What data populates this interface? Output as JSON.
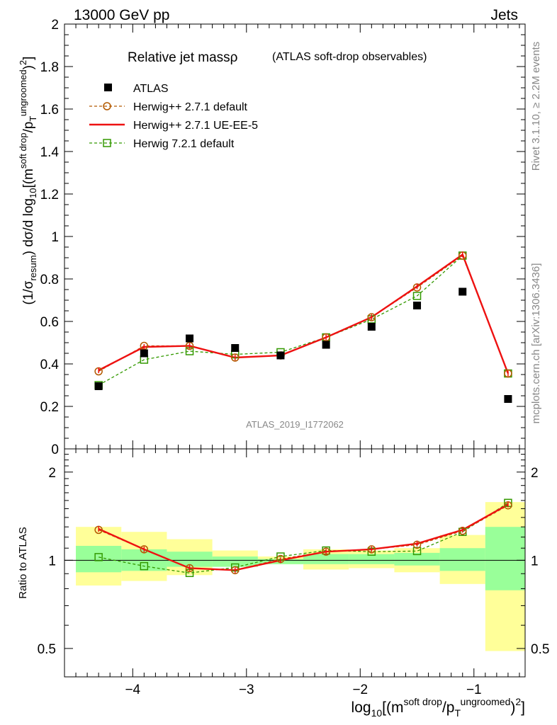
{
  "header": {
    "left": "13000 GeV pp",
    "right": "Jets"
  },
  "side": {
    "rivet": "Rivet 3.1.10, ≥ 2.2M events",
    "mcplots": "mcplots.cern.ch [arXiv:1306.3436]"
  },
  "analysis_id": "ATLAS_2019_I1772062",
  "title": {
    "main": "Relative jet massρ",
    "sub": "(ATLAS soft-drop observables)"
  },
  "colors": {
    "atlas": "#000000",
    "h271": "#b35900",
    "ueee5": "#ee1111",
    "h721": "#339900",
    "band_inner": "#99ff99",
    "band_outer": "#ffff99"
  },
  "chart_data": [
    {
      "type": "scatter",
      "ylabel": "(1/σresum) dσ/d log10[(m^soft drop/pT^ungroomed)²]",
      "xlim": [
        -4.6,
        -0.55
      ],
      "ylim": [
        0,
        2
      ],
      "yticks": [
        "0",
        "0.2",
        "0.4",
        "0.6",
        "0.8",
        "1",
        "1.2",
        "1.4",
        "1.6",
        "1.8",
        "2"
      ],
      "x_bin_edges": [
        -4.5,
        -4.1,
        -3.7,
        -3.3,
        -2.9,
        -2.5,
        -2.1,
        -1.7,
        -1.3,
        -0.9,
        -0.5
      ],
      "x": [
        -4.3,
        -3.9,
        -3.5,
        -3.1,
        -2.7,
        -2.3,
        -1.9,
        -1.5,
        -1.1,
        -0.7
      ],
      "series": [
        {
          "name": "ATLAS",
          "values": [
            0.295,
            0.45,
            0.52,
            0.475,
            0.44,
            0.49,
            0.575,
            0.675,
            0.74,
            0.235
          ]
        },
        {
          "name": "Herwig++ 2.7.1 default",
          "values": [
            0.365,
            0.485,
            0.485,
            0.43,
            0.44,
            0.525,
            0.62,
            0.76,
            0.91,
            0.355
          ]
        },
        {
          "name": "Herwig++ 2.7.1 UE-EE-5",
          "values": [
            0.37,
            0.48,
            0.485,
            0.43,
            0.44,
            0.525,
            0.62,
            0.765,
            0.915,
            0.355
          ]
        },
        {
          "name": "Herwig 7.2.1 default",
          "values": [
            0.3,
            0.42,
            0.46,
            0.445,
            0.455,
            0.525,
            0.61,
            0.72,
            0.91,
            0.355
          ]
        }
      ]
    },
    {
      "type": "line",
      "ylabel": "Ratio to ATLAS",
      "xlabel": "log10[(m^soft drop/pT^ungroomed)²]",
      "ylim": [
        0.4,
        2.4
      ],
      "log_y": true,
      "yticks": [
        "0.5",
        "1",
        "2"
      ],
      "xticks": [
        "−4",
        "−3",
        "−2",
        "−1"
      ],
      "band_inner": [
        [
          0.91,
          1.12
        ],
        [
          0.92,
          1.09
        ],
        [
          0.95,
          1.07
        ],
        [
          0.95,
          1.03
        ],
        [
          0.97,
          1.01
        ],
        [
          0.97,
          1.05
        ],
        [
          0.97,
          1.05
        ],
        [
          0.96,
          1.06
        ],
        [
          0.92,
          1.1
        ],
        [
          0.79,
          1.3
        ]
      ],
      "band_outer": [
        [
          0.82,
          1.3
        ],
        [
          0.85,
          1.25
        ],
        [
          0.89,
          1.18
        ],
        [
          0.95,
          1.08
        ],
        [
          0.97,
          1.03
        ],
        [
          0.93,
          1.09
        ],
        [
          0.94,
          1.08
        ],
        [
          0.91,
          1.1
        ],
        [
          0.83,
          1.22
        ],
        [
          0.49,
          1.58
        ]
      ],
      "series": [
        {
          "name": "Herwig++ 2.7.1 default",
          "values": [
            1.27,
            1.09,
            0.94,
            0.925,
            1.01,
            1.07,
            1.09,
            1.13,
            1.26,
            1.54
          ]
        },
        {
          "name": "Herwig++ 2.7.1 UE-EE-5",
          "values": [
            1.28,
            1.09,
            0.94,
            0.925,
            1.0,
            1.07,
            1.09,
            1.14,
            1.27,
            1.55
          ]
        },
        {
          "name": "Herwig 7.2.1 default",
          "values": [
            1.025,
            0.955,
            0.905,
            0.945,
            1.03,
            1.08,
            1.07,
            1.075,
            1.25,
            1.57
          ]
        }
      ]
    }
  ]
}
